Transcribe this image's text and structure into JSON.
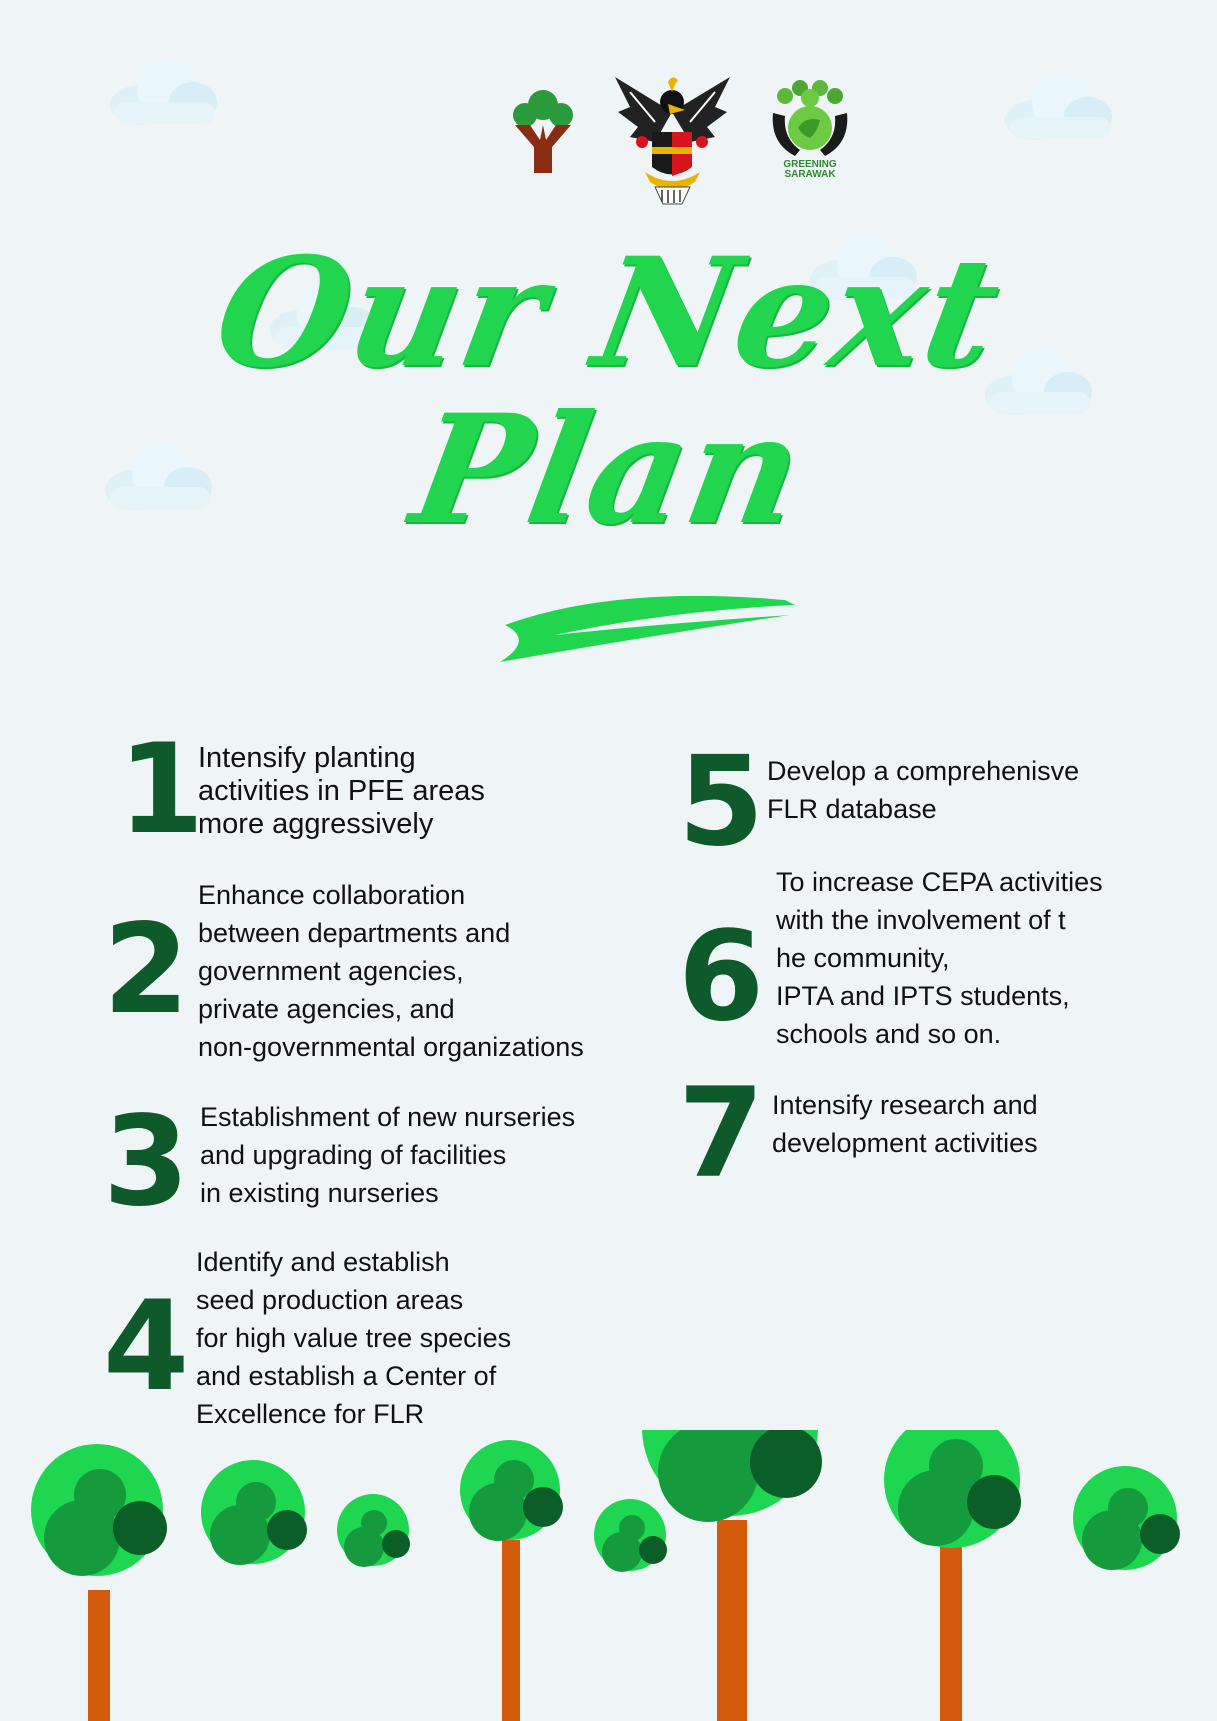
{
  "title": {
    "line1": "Our Next",
    "line2": "Plan"
  },
  "logos": [
    {
      "icon": "forest-tree-logo-icon"
    },
    {
      "icon": "sarawak-coat-of-arms-icon"
    },
    {
      "icon": "greening-sarawak-logo-icon",
      "text": [
        "GREENING",
        "SARAWAK"
      ]
    }
  ],
  "plans": [
    {
      "number": "1",
      "lines": [
        "Intensify planting",
        "activities in PFE areas",
        "more aggressively"
      ]
    },
    {
      "number": "2",
      "lines": [
        "Enhance collaboration",
        "between departments and",
        "government agencies,",
        "private agencies, and",
        "non-governmental organizations"
      ]
    },
    {
      "number": "3",
      "lines": [
        "Establishment of new nurseries",
        "and upgrading of facilities",
        "in existing nurseries"
      ]
    },
    {
      "number": "4",
      "lines": [
        "Identify and establish",
        "seed production areas",
        "for high value tree species",
        "and establish a Center of",
        "Excellence for FLR"
      ]
    },
    {
      "number": "5",
      "lines": [
        "Develop a comprehenisve",
        "FLR database"
      ]
    },
    {
      "number": "6",
      "lines": [
        "To increase CEPA activities",
        "with the involvement of t",
        "he community,",
        "IPTA and IPTS students,",
        "schools and so on."
      ]
    },
    {
      "number": "7",
      "lines": [
        "Intensify research and",
        "development activities"
      ]
    }
  ],
  "colors": {
    "background": "#eff5f7",
    "title_green": "#22d54f",
    "number_green": "#0e5a2b",
    "tree_light": "#1fd650",
    "tree_mid": "#169a3e",
    "tree_dark": "#0c5e28",
    "trunk": "#d45a0c"
  }
}
